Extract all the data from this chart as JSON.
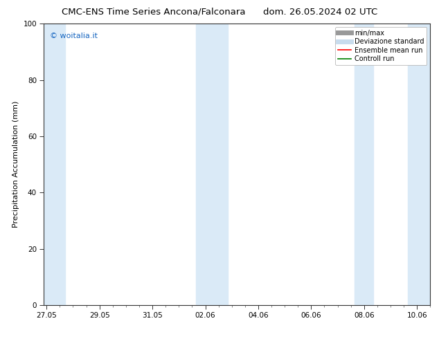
{
  "title_left": "CMC-ENS Time Series Ancona/Falconara",
  "title_right": "dom. 26.05.2024 02 UTC",
  "ylabel": "Precipitation Accumulation (mm)",
  "ylim": [
    0,
    100
  ],
  "yticks": [
    0,
    20,
    40,
    60,
    80,
    100
  ],
  "xtick_labels": [
    "27.05",
    "29.05",
    "31.05",
    "02.06",
    "04.06",
    "06.06",
    "08.06",
    "10.06"
  ],
  "xtick_positions": [
    0,
    2,
    4,
    6,
    8,
    10,
    12,
    14
  ],
  "xlim": [
    -0.1,
    14.5
  ],
  "background_color": "#ffffff",
  "plot_bg_color": "#ffffff",
  "shaded_band_color": "#daeaf7",
  "band_positions": [
    {
      "x_start": -0.1,
      "x_end": 0.7
    },
    {
      "x_start": 5.65,
      "x_end": 6.85
    },
    {
      "x_start": 11.65,
      "x_end": 12.35
    },
    {
      "x_start": 13.65,
      "x_end": 14.5
    }
  ],
  "watermark": "© woitalia.it",
  "watermark_color": "#1565c0",
  "legend_items": [
    {
      "label": "min/max",
      "color": "#999999",
      "lw": 5,
      "type": "line"
    },
    {
      "label": "Deviazione standard",
      "color": "#c8dced",
      "lw": 5,
      "type": "line"
    },
    {
      "label": "Ensemble mean run",
      "color": "#ff0000",
      "lw": 1.2,
      "type": "line"
    },
    {
      "label": "Controll run",
      "color": "#008000",
      "lw": 1.2,
      "type": "line"
    }
  ],
  "title_fontsize": 9.5,
  "tick_fontsize": 7.5,
  "ylabel_fontsize": 8,
  "watermark_fontsize": 8,
  "legend_fontsize": 7
}
